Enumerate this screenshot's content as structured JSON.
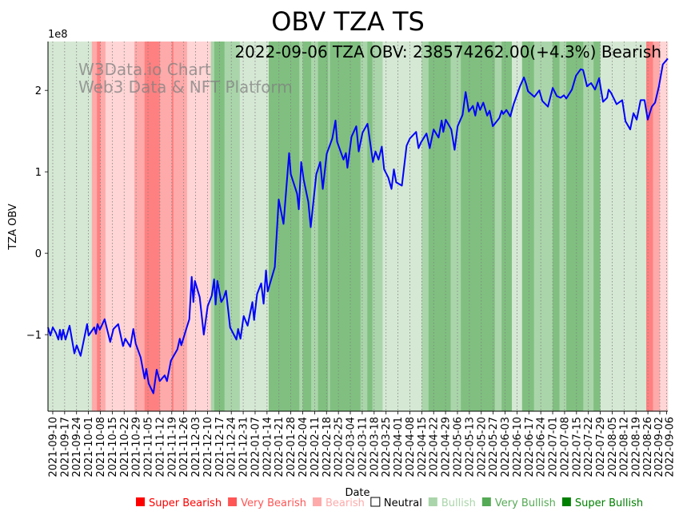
{
  "chart_data": {
    "type": "line",
    "title": "OBV TZA TS",
    "annotation": "2022-09-06 TZA OBV: 238574262.00(+4.3%) Bearish",
    "watermark": [
      "W3Data.io Chart",
      "Web3 Data & NFT Platform"
    ],
    "xlabel": "Date",
    "ylabel": "TZA OBV",
    "y_multiplier_label": "1e8",
    "x_unit": "days since 2021-09-10",
    "xlim": [
      -2.8,
      361.7
    ],
    "ylim": [
      -1.94,
      2.6
    ],
    "yticks": [
      {
        "v": -1,
        "label": "−1"
      },
      {
        "v": 0,
        "label": "0"
      },
      {
        "v": 1,
        "label": "1"
      },
      {
        "v": 2,
        "label": "2"
      }
    ],
    "xticks": [
      {
        "d": 0,
        "label": "2021-09-10"
      },
      {
        "d": 7,
        "label": "2021-09-17"
      },
      {
        "d": 14,
        "label": "2021-09-24"
      },
      {
        "d": 21,
        "label": "2021-10-01"
      },
      {
        "d": 28,
        "label": "2021-10-08"
      },
      {
        "d": 35,
        "label": "2021-10-15"
      },
      {
        "d": 42,
        "label": "2021-10-22"
      },
      {
        "d": 49,
        "label": "2021-10-29"
      },
      {
        "d": 56,
        "label": "2021-11-05"
      },
      {
        "d": 63,
        "label": "2021-11-12"
      },
      {
        "d": 70,
        "label": "2021-11-19"
      },
      {
        "d": 77,
        "label": "2021-11-26"
      },
      {
        "d": 84,
        "label": "2021-12-03"
      },
      {
        "d": 91,
        "label": "2021-12-10"
      },
      {
        "d": 98,
        "label": "2021-12-17"
      },
      {
        "d": 105,
        "label": "2021-12-24"
      },
      {
        "d": 112,
        "label": "2021-12-31"
      },
      {
        "d": 119,
        "label": "2022-01-07"
      },
      {
        "d": 126,
        "label": "2022-01-14"
      },
      {
        "d": 133,
        "label": "2022-01-21"
      },
      {
        "d": 140,
        "label": "2022-01-28"
      },
      {
        "d": 147,
        "label": "2022-02-04"
      },
      {
        "d": 154,
        "label": "2022-02-11"
      },
      {
        "d": 161,
        "label": "2022-02-18"
      },
      {
        "d": 168,
        "label": "2022-02-25"
      },
      {
        "d": 175,
        "label": "2022-03-04"
      },
      {
        "d": 182,
        "label": "2022-03-11"
      },
      {
        "d": 189,
        "label": "2022-03-18"
      },
      {
        "d": 196,
        "label": "2022-03-25"
      },
      {
        "d": 203,
        "label": "2022-04-01"
      },
      {
        "d": 210,
        "label": "2022-04-08"
      },
      {
        "d": 217,
        "label": "2022-04-15"
      },
      {
        "d": 224,
        "label": "2022-04-22"
      },
      {
        "d": 231,
        "label": "2022-04-29"
      },
      {
        "d": 238,
        "label": "2022-05-06"
      },
      {
        "d": 245,
        "label": "2022-05-13"
      },
      {
        "d": 252,
        "label": "2022-05-20"
      },
      {
        "d": 259,
        "label": "2022-05-27"
      },
      {
        "d": 266,
        "label": "2022-06-03"
      },
      {
        "d": 273,
        "label": "2022-06-10"
      },
      {
        "d": 280,
        "label": "2022-06-17"
      },
      {
        "d": 287,
        "label": "2022-06-24"
      },
      {
        "d": 294,
        "label": "2022-07-01"
      },
      {
        "d": 301,
        "label": "2022-07-08"
      },
      {
        "d": 308,
        "label": "2022-07-15"
      },
      {
        "d": 315,
        "label": "2022-07-22"
      },
      {
        "d": 322,
        "label": "2022-07-29"
      },
      {
        "d": 329,
        "label": "2022-08-05"
      },
      {
        "d": 336,
        "label": "2022-08-12"
      },
      {
        "d": 343,
        "label": "2022-08-19"
      },
      {
        "d": 350,
        "label": "2022-08-26"
      },
      {
        "d": 357,
        "label": "2022-09-02"
      },
      {
        "d": 361,
        "label": "2022-09-06"
      }
    ],
    "series": [
      {
        "name": "TZA OBV (1e8)",
        "color": "#0000ff",
        "points": [
          [
            -2.8,
            -0.91
          ],
          [
            -1.4,
            -1.01
          ],
          [
            0,
            -0.91
          ],
          [
            1.9,
            -0.98
          ],
          [
            3.3,
            -1.06
          ],
          [
            4.2,
            -0.94
          ],
          [
            5.2,
            -1.06
          ],
          [
            6.1,
            -0.94
          ],
          [
            7.5,
            -1.06
          ],
          [
            9.9,
            -0.89
          ],
          [
            12.7,
            -1.23
          ],
          [
            14.1,
            -1.13
          ],
          [
            16.4,
            -1.26
          ],
          [
            20.2,
            -0.87
          ],
          [
            21.1,
            -1.01
          ],
          [
            24.4,
            -0.91
          ],
          [
            25.4,
            -0.99
          ],
          [
            26.3,
            -0.87
          ],
          [
            27.7,
            -0.94
          ],
          [
            30.5,
            -0.81
          ],
          [
            33.8,
            -1.09
          ],
          [
            35.7,
            -0.93
          ],
          [
            38.5,
            -0.87
          ],
          [
            41.3,
            -1.14
          ],
          [
            42.7,
            -1.05
          ],
          [
            45.6,
            -1.15
          ],
          [
            47.4,
            -0.93
          ],
          [
            48.8,
            -1.11
          ],
          [
            51.7,
            -1.28
          ],
          [
            54.0,
            -1.54
          ],
          [
            55.0,
            -1.42
          ],
          [
            56.4,
            -1.6
          ],
          [
            59.2,
            -1.72
          ],
          [
            61.1,
            -1.43
          ],
          [
            62.9,
            -1.57
          ],
          [
            65.8,
            -1.5
          ],
          [
            67.2,
            -1.57
          ],
          [
            69.5,
            -1.32
          ],
          [
            73.3,
            -1.18
          ],
          [
            74.7,
            -1.05
          ],
          [
            75.6,
            -1.13
          ],
          [
            78.4,
            -0.94
          ],
          [
            80.3,
            -0.81
          ],
          [
            81.7,
            -0.29
          ],
          [
            82.7,
            -0.6
          ],
          [
            83.6,
            -0.34
          ],
          [
            86.4,
            -0.54
          ],
          [
            88.8,
            -1.0
          ],
          [
            91.1,
            -0.65
          ],
          [
            93.5,
            -0.52
          ],
          [
            94.9,
            -0.32
          ],
          [
            95.8,
            -0.63
          ],
          [
            96.8,
            -0.34
          ],
          [
            99.1,
            -0.6
          ],
          [
            100.5,
            -0.55
          ],
          [
            101.9,
            -0.46
          ],
          [
            104.3,
            -0.91
          ],
          [
            108.0,
            -1.06
          ],
          [
            109.0,
            -0.93
          ],
          [
            110.4,
            -1.05
          ],
          [
            112.3,
            -0.77
          ],
          [
            114.6,
            -0.89
          ],
          [
            117.4,
            -0.6
          ],
          [
            118.4,
            -0.82
          ],
          [
            120.2,
            -0.5
          ],
          [
            122.6,
            -0.37
          ],
          [
            124.0,
            -0.62
          ],
          [
            125.4,
            -0.21
          ],
          [
            126.4,
            -0.47
          ],
          [
            130.6,
            -0.17
          ],
          [
            132.9,
            0.66
          ],
          [
            135.7,
            0.36
          ],
          [
            139.0,
            1.23
          ],
          [
            140.0,
            0.97
          ],
          [
            143.7,
            0.73
          ],
          [
            144.7,
            0.54
          ],
          [
            146.1,
            1.12
          ],
          [
            147.5,
            0.91
          ],
          [
            150.3,
            0.63
          ],
          [
            151.7,
            0.32
          ],
          [
            155.0,
            0.97
          ],
          [
            157.3,
            1.12
          ],
          [
            158.8,
            0.79
          ],
          [
            161.1,
            1.22
          ],
          [
            164.4,
            1.41
          ],
          [
            166.3,
            1.63
          ],
          [
            167.2,
            1.37
          ],
          [
            171.0,
            1.15
          ],
          [
            172.4,
            1.23
          ],
          [
            173.3,
            1.05
          ],
          [
            175.7,
            1.43
          ],
          [
            178.5,
            1.56
          ],
          [
            179.9,
            1.25
          ],
          [
            182.2,
            1.48
          ],
          [
            185.1,
            1.59
          ],
          [
            188.3,
            1.12
          ],
          [
            189.8,
            1.25
          ],
          [
            191.6,
            1.15
          ],
          [
            193.5,
            1.31
          ],
          [
            194.9,
            1.03
          ],
          [
            197.3,
            0.93
          ],
          [
            199.2,
            0.79
          ],
          [
            200.6,
            1.03
          ],
          [
            202.0,
            0.87
          ],
          [
            205.3,
            0.83
          ],
          [
            208.1,
            1.32
          ],
          [
            210.0,
            1.41
          ],
          [
            213.7,
            1.49
          ],
          [
            215.1,
            1.29
          ],
          [
            216.5,
            1.36
          ],
          [
            219.8,
            1.47
          ],
          [
            221.7,
            1.29
          ],
          [
            224.0,
            1.52
          ],
          [
            226.9,
            1.42
          ],
          [
            228.7,
            1.63
          ],
          [
            229.7,
            1.49
          ],
          [
            231.1,
            1.64
          ],
          [
            234.4,
            1.52
          ],
          [
            236.3,
            1.27
          ],
          [
            238.1,
            1.56
          ],
          [
            241.0,
            1.7
          ],
          [
            242.8,
            1.98
          ],
          [
            244.7,
            1.74
          ],
          [
            247.1,
            1.81
          ],
          [
            248.5,
            1.69
          ],
          [
            249.9,
            1.85
          ],
          [
            251.3,
            1.76
          ],
          [
            253.2,
            1.85
          ],
          [
            255.5,
            1.69
          ],
          [
            256.9,
            1.75
          ],
          [
            258.8,
            1.56
          ],
          [
            262.6,
            1.66
          ],
          [
            264.0,
            1.75
          ],
          [
            264.9,
            1.71
          ],
          [
            266.8,
            1.76
          ],
          [
            269.1,
            1.68
          ],
          [
            271.0,
            1.83
          ],
          [
            274.8,
            2.05
          ],
          [
            277.1,
            2.16
          ],
          [
            278.5,
            2.07
          ],
          [
            279.5,
            1.99
          ],
          [
            283.2,
            1.92
          ],
          [
            286.1,
            2.0
          ],
          [
            287.9,
            1.87
          ],
          [
            291.2,
            1.8
          ],
          [
            294.0,
            2.03
          ],
          [
            296.4,
            1.93
          ],
          [
            298.7,
            1.91
          ],
          [
            300.6,
            1.94
          ],
          [
            302.0,
            1.9
          ],
          [
            305.3,
            2.01
          ],
          [
            307.7,
            2.18
          ],
          [
            310.5,
            2.26
          ],
          [
            311.9,
            2.25
          ],
          [
            314.2,
            2.05
          ],
          [
            316.6,
            2.09
          ],
          [
            318.9,
            2.01
          ],
          [
            321.3,
            2.15
          ],
          [
            323.6,
            1.86
          ],
          [
            326.0,
            1.91
          ],
          [
            326.9,
            2.01
          ],
          [
            328.3,
            1.97
          ],
          [
            331.6,
            1.83
          ],
          [
            334.9,
            1.88
          ],
          [
            336.8,
            1.62
          ],
          [
            339.6,
            1.52
          ],
          [
            341.5,
            1.72
          ],
          [
            343.4,
            1.64
          ],
          [
            345.7,
            1.88
          ],
          [
            348.0,
            1.88
          ],
          [
            349.9,
            1.64
          ],
          [
            352.3,
            1.8
          ],
          [
            354.2,
            1.85
          ],
          [
            356.5,
            2.05
          ],
          [
            358.8,
            2.32
          ],
          [
            361.7,
            2.39
          ]
        ]
      }
    ],
    "signal_bands": [
      [
        -2.8,
        23,
        "Bullish"
      ],
      [
        23,
        26,
        "Very Bearish"
      ],
      [
        26,
        28,
        "Super Bearish"
      ],
      [
        28,
        31,
        "Very Bearish"
      ],
      [
        31,
        48,
        "Bearish"
      ],
      [
        48,
        54,
        "Very Bearish"
      ],
      [
        54,
        63,
        "Super Bearish"
      ],
      [
        63,
        70,
        "Very Bearish"
      ],
      [
        70,
        71,
        "Super Bearish"
      ],
      [
        71,
        79,
        "Very Bearish"
      ],
      [
        79,
        93,
        "Bearish"
      ],
      [
        93,
        95,
        "Very Bullish"
      ],
      [
        95,
        101,
        "Super Bullish"
      ],
      [
        101,
        110,
        "Very Bullish"
      ],
      [
        110,
        127,
        "Bullish"
      ],
      [
        127,
        145,
        "Super Bullish"
      ],
      [
        145,
        147,
        "Very Bullish"
      ],
      [
        147,
        152,
        "Super Bullish"
      ],
      [
        152,
        156,
        "Very Bullish"
      ],
      [
        156,
        162,
        "Super Bullish"
      ],
      [
        162,
        163,
        "Very Bullish"
      ],
      [
        163,
        181,
        "Super Bullish"
      ],
      [
        181,
        185,
        "Very Bullish"
      ],
      [
        185,
        188,
        "Super Bullish"
      ],
      [
        188,
        194,
        "Very Bullish"
      ],
      [
        194,
        217,
        "Bullish"
      ],
      [
        217,
        221,
        "Very Bullish"
      ],
      [
        221,
        234,
        "Super Bullish"
      ],
      [
        234,
        240,
        "Very Bullish"
      ],
      [
        240,
        260,
        "Super Bullish"
      ],
      [
        260,
        264,
        "Very Bullish"
      ],
      [
        264,
        270,
        "Super Bullish"
      ],
      [
        270,
        276,
        "Bullish"
      ],
      [
        276,
        283,
        "Super Bullish"
      ],
      [
        283,
        294,
        "Very Bullish"
      ],
      [
        294,
        298,
        "Super Bullish"
      ],
      [
        298,
        302,
        "Very Bullish"
      ],
      [
        302,
        312,
        "Super Bullish"
      ],
      [
        312,
        318,
        "Very Bullish"
      ],
      [
        318,
        322,
        "Super Bullish"
      ],
      [
        322,
        349,
        "Bullish"
      ],
      [
        349,
        353,
        "Super Bearish"
      ],
      [
        353,
        357,
        "Very Bearish"
      ],
      [
        357,
        361.7,
        "Bearish"
      ]
    ],
    "band_colors": {
      "Super Bearish": "#ff8080",
      "Very Bearish": "#ffaaaa",
      "Bearish": "#ffd5d5",
      "Bullish": "#d5e8d4",
      "Very Bullish": "#aad5aa",
      "Super Bullish": "#80bf80"
    },
    "legend": {
      "placement": "bottom",
      "items": [
        {
          "label": "Super Bearish",
          "color": "#ff0000",
          "text_color": "#ff0000"
        },
        {
          "label": "Very Bearish",
          "color": "#ff5555",
          "text_color": "#ff5555"
        },
        {
          "label": "Bearish",
          "color": "#ffaaaa",
          "text_color": "#ffaaaa"
        },
        {
          "label": "Neutral",
          "color": "#ffffff",
          "text_color": "#000000"
        },
        {
          "label": "Bullish",
          "color": "#aad5aa",
          "text_color": "#aad5aa"
        },
        {
          "label": "Very Bullish",
          "color": "#55aa55",
          "text_color": "#55aa55"
        },
        {
          "label": "Super Bullish",
          "color": "#008000",
          "text_color": "#008000"
        }
      ]
    },
    "grid": "vertical dotted at x ticks"
  }
}
